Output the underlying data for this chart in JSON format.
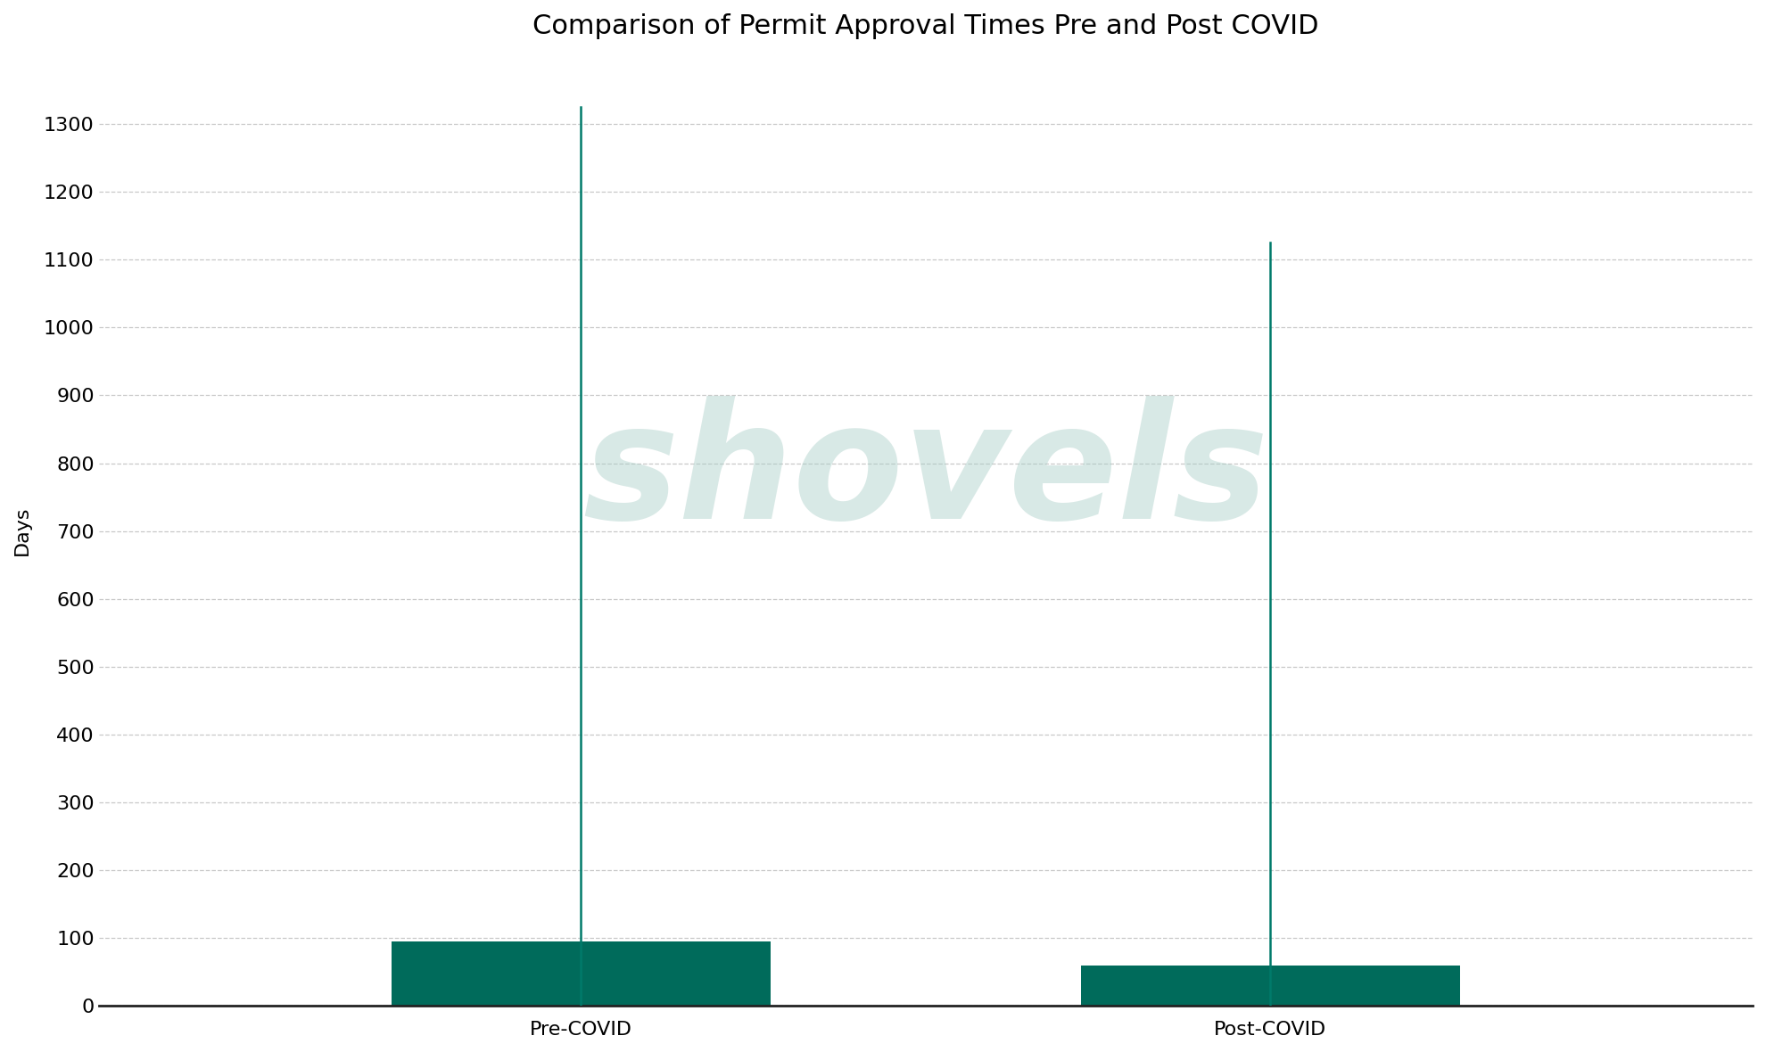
{
  "title": "Comparison of Permit Approval Times Pre and Post COVID",
  "ylabel": "Days",
  "categories": [
    "Pre-COVID",
    "Post-COVID"
  ],
  "bar_q1": [
    0,
    0
  ],
  "bar_q3": [
    95,
    60
  ],
  "whisker_max": [
    1325,
    1125
  ],
  "bar_color": "#006B5B",
  "line_color": "#007A6A",
  "background_color": "#ffffff",
  "ylim": [
    0,
    1400
  ],
  "yticks": [
    0,
    100,
    200,
    300,
    400,
    500,
    600,
    700,
    800,
    900,
    1000,
    1100,
    1200,
    1300
  ],
  "title_fontsize": 22,
  "label_fontsize": 16,
  "tick_fontsize": 16,
  "bar_width": 0.55,
  "grid_color": "#c8c8c8",
  "watermark_text": "shovels",
  "watermark_color": "#aacfc8",
  "watermark_alpha": 0.45,
  "x_positions": [
    1,
    2
  ],
  "xlim": [
    0.3,
    2.7
  ]
}
